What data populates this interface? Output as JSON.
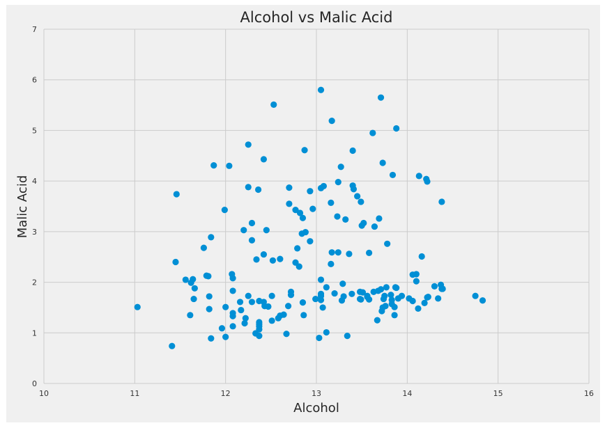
{
  "chart_data": {
    "type": "scatter",
    "title": "Alcohol vs Malic Acid",
    "xlabel": "Alcohol",
    "ylabel": "Malic Acid",
    "xlim": [
      10,
      16
    ],
    "ylim": [
      0,
      7
    ],
    "xticks": [
      "10",
      "11",
      "12",
      "13",
      "14",
      "15",
      "16"
    ],
    "yticks": [
      "0",
      "1",
      "2",
      "3",
      "4",
      "5",
      "6",
      "7"
    ],
    "grid": true,
    "background_color": "#f0f0f0",
    "marker_color": "#008fd5",
    "series": [
      {
        "points": [
          [
            11.03,
            1.51
          ],
          [
            11.41,
            0.74
          ],
          [
            11.46,
            3.74
          ],
          [
            11.45,
            2.4
          ],
          [
            11.56,
            2.05
          ],
          [
            11.61,
            1.35
          ],
          [
            11.62,
            1.99
          ],
          [
            11.64,
            2.06
          ],
          [
            11.65,
            1.67
          ],
          [
            11.66,
            1.88
          ],
          [
            11.76,
            2.68
          ],
          [
            11.79,
            2.13
          ],
          [
            11.81,
            2.12
          ],
          [
            11.82,
            1.47
          ],
          [
            11.82,
            1.72
          ],
          [
            11.84,
            2.89
          ],
          [
            11.84,
            0.89
          ],
          [
            11.87,
            4.31
          ],
          [
            11.96,
            1.09
          ],
          [
            11.99,
            3.43
          ],
          [
            12.0,
            1.51
          ],
          [
            12.0,
            0.92
          ],
          [
            12.04,
            4.3
          ],
          [
            12.07,
            2.16
          ],
          [
            12.08,
            2.08
          ],
          [
            12.08,
            1.83
          ],
          [
            12.08,
            1.39
          ],
          [
            12.08,
            1.33
          ],
          [
            12.08,
            1.13
          ],
          [
            12.16,
            1.61
          ],
          [
            12.17,
            1.45
          ],
          [
            12.2,
            3.03
          ],
          [
            12.21,
            1.19
          ],
          [
            12.22,
            1.29
          ],
          [
            12.25,
            1.73
          ],
          [
            12.25,
            3.88
          ],
          [
            12.25,
            4.72
          ],
          [
            12.29,
            1.61
          ],
          [
            12.29,
            2.83
          ],
          [
            12.29,
            3.17
          ],
          [
            12.33,
            0.99
          ],
          [
            12.34,
            2.45
          ],
          [
            12.36,
            3.83
          ],
          [
            12.37,
            1.17
          ],
          [
            12.37,
            1.07
          ],
          [
            12.37,
            1.13
          ],
          [
            12.37,
            1.21
          ],
          [
            12.37,
            1.63
          ],
          [
            12.37,
            0.94
          ],
          [
            12.42,
            2.55
          ],
          [
            12.42,
            4.43
          ],
          [
            12.42,
            1.61
          ],
          [
            12.43,
            1.53
          ],
          [
            12.45,
            3.03
          ],
          [
            12.47,
            1.52
          ],
          [
            12.51,
            1.73
          ],
          [
            12.51,
            1.24
          ],
          [
            12.52,
            2.43
          ],
          [
            12.53,
            5.51
          ],
          [
            12.58,
            1.29
          ],
          [
            12.6,
            2.46
          ],
          [
            12.6,
            1.34
          ],
          [
            12.64,
            1.36
          ],
          [
            12.67,
            0.98
          ],
          [
            12.69,
            1.53
          ],
          [
            12.7,
            3.55
          ],
          [
            12.7,
            3.87
          ],
          [
            12.72,
            1.75
          ],
          [
            12.72,
            1.81
          ],
          [
            12.77,
            3.43
          ],
          [
            12.77,
            2.39
          ],
          [
            12.79,
            2.67
          ],
          [
            12.81,
            2.31
          ],
          [
            12.82,
            3.37
          ],
          [
            12.84,
            2.96
          ],
          [
            12.85,
            3.27
          ],
          [
            12.85,
            1.6
          ],
          [
            12.86,
            1.35
          ],
          [
            12.87,
            4.61
          ],
          [
            12.88,
            2.99
          ],
          [
            12.93,
            3.8
          ],
          [
            12.93,
            2.81
          ],
          [
            12.96,
            3.45
          ],
          [
            12.99,
            1.67
          ],
          [
            13.03,
            0.9
          ],
          [
            13.05,
            1.77
          ],
          [
            13.05,
            5.8
          ],
          [
            13.05,
            1.65
          ],
          [
            13.05,
            3.86
          ],
          [
            13.05,
            2.05
          ],
          [
            13.05,
            1.73
          ],
          [
            13.07,
            1.5
          ],
          [
            13.08,
            3.9
          ],
          [
            13.11,
            1.01
          ],
          [
            13.11,
            1.9
          ],
          [
            13.16,
            3.57
          ],
          [
            13.16,
            2.36
          ],
          [
            13.17,
            5.19
          ],
          [
            13.17,
            2.59
          ],
          [
            13.2,
            1.78
          ],
          [
            13.23,
            3.3
          ],
          [
            13.24,
            2.59
          ],
          [
            13.24,
            3.98
          ],
          [
            13.27,
            4.28
          ],
          [
            13.28,
            1.64
          ],
          [
            13.29,
            1.97
          ],
          [
            13.3,
            1.72
          ],
          [
            13.32,
            3.24
          ],
          [
            13.34,
            0.94
          ],
          [
            13.36,
            2.56
          ],
          [
            13.39,
            1.77
          ],
          [
            13.4,
            4.6
          ],
          [
            13.4,
            3.91
          ],
          [
            13.41,
            3.84
          ],
          [
            13.45,
            3.7
          ],
          [
            13.48,
            1.81
          ],
          [
            13.48,
            1.67
          ],
          [
            13.49,
            1.66
          ],
          [
            13.49,
            3.59
          ],
          [
            13.5,
            3.12
          ],
          [
            13.51,
            1.8
          ],
          [
            13.52,
            3.17
          ],
          [
            13.56,
            1.71
          ],
          [
            13.56,
            1.73
          ],
          [
            13.58,
            1.66
          ],
          [
            13.58,
            2.58
          ],
          [
            13.62,
            4.95
          ],
          [
            13.63,
            1.81
          ],
          [
            13.64,
            3.1
          ],
          [
            13.67,
            1.25
          ],
          [
            13.68,
            1.83
          ],
          [
            13.69,
            3.26
          ],
          [
            13.71,
            1.86
          ],
          [
            13.71,
            5.65
          ],
          [
            13.72,
            1.43
          ],
          [
            13.73,
            1.5
          ],
          [
            13.73,
            4.36
          ],
          [
            13.74,
            1.67
          ],
          [
            13.75,
            1.73
          ],
          [
            13.76,
            1.53
          ],
          [
            13.77,
            1.9
          ],
          [
            13.78,
            2.76
          ],
          [
            13.82,
            1.75
          ],
          [
            13.83,
            1.57
          ],
          [
            13.83,
            1.65
          ],
          [
            13.84,
            4.12
          ],
          [
            13.86,
            1.35
          ],
          [
            13.86,
            1.51
          ],
          [
            13.87,
            1.9
          ],
          [
            13.88,
            1.89
          ],
          [
            13.88,
            5.04
          ],
          [
            13.9,
            1.68
          ],
          [
            13.94,
            1.73
          ],
          [
            14.02,
            1.68
          ],
          [
            14.06,
            1.63
          ],
          [
            14.06,
            2.15
          ],
          [
            14.1,
            2.16
          ],
          [
            14.1,
            2.02
          ],
          [
            14.12,
            1.48
          ],
          [
            14.13,
            4.1
          ],
          [
            14.16,
            2.51
          ],
          [
            14.19,
            1.59
          ],
          [
            14.21,
            4.04
          ],
          [
            14.22,
            3.99
          ],
          [
            14.22,
            1.7
          ],
          [
            14.23,
            1.71
          ],
          [
            14.3,
            1.92
          ],
          [
            14.34,
            1.68
          ],
          [
            14.37,
            1.95
          ],
          [
            14.38,
            1.87
          ],
          [
            14.38,
            3.59
          ],
          [
            14.39,
            1.87
          ],
          [
            14.75,
            1.73
          ],
          [
            14.83,
            1.64
          ]
        ]
      }
    ]
  }
}
